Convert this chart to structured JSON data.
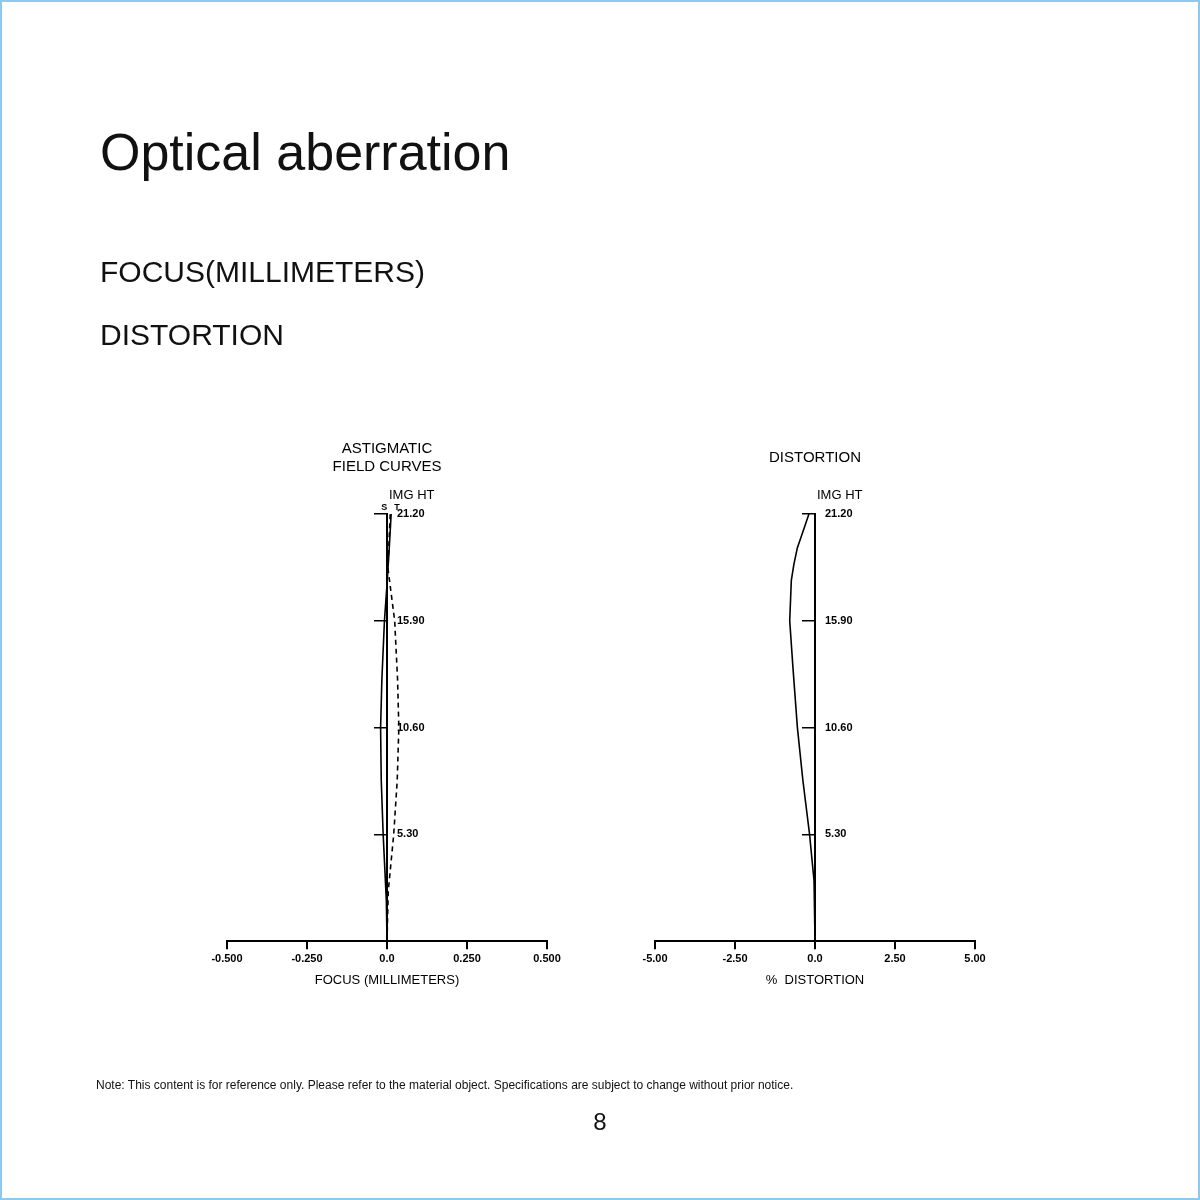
{
  "chart_data": [
    {
      "type": "line",
      "title": [
        "ASTIGMATIC",
        "FIELD CURVES"
      ],
      "xlabel": "FOCUS (MILLIMETERS)",
      "ylabel": "IMG HT",
      "annotations": [
        "Optical aberration",
        "FOCUS(MILLIMETERS)",
        "DISTORTION"
      ],
      "xlim": [
        -0.5,
        0.5
      ],
      "xticks": [
        {
          "value": -0.5,
          "label": "-0.500"
        },
        {
          "value": -0.25,
          "label": "-0.250"
        },
        {
          "value": 0,
          "label": "0.0"
        },
        {
          "value": 0.25,
          "label": "0.250"
        },
        {
          "value": 0.5,
          "label": "0.500"
        }
      ],
      "ylim": [
        0,
        21.2
      ],
      "yticks": [
        {
          "value": 5.3,
          "label": "5.30"
        },
        {
          "value": 10.6,
          "label": "10.60"
        },
        {
          "value": 15.9,
          "label": "15.90"
        },
        {
          "value": 21.2,
          "label": "21.20"
        }
      ],
      "grid": false,
      "legend": false,
      "marker": "none",
      "series": [
        {
          "name": "S",
          "color": "#000000",
          "line_style": "solid",
          "x": [
            0,
            -0.002,
            -0.012,
            -0.018,
            -0.02,
            -0.016,
            -0.008,
            0,
            0.007,
            0.013
          ],
          "values": [
            0,
            2,
            5.3,
            8,
            10.6,
            13,
            15.9,
            17.7,
            19.5,
            21.2
          ]
        },
        {
          "name": "T",
          "color": "#000000",
          "line_style": "dashed",
          "x": [
            0,
            0.004,
            0.021,
            0.032,
            0.037,
            0.033,
            0.024,
            0.003,
            0.01
          ],
          "values": [
            0,
            2.5,
            5.3,
            8,
            10.6,
            13,
            15.9,
            18.5,
            21.2
          ]
        }
      ]
    },
    {
      "type": "line",
      "title": "DISTORTION",
      "xlabel": "%  DISTORTION",
      "ylabel": "IMG HT",
      "annotations": [
        "Note: This content is for reference only. Please refer to the material object. Specifications are subject to change without prior notice.",
        "8"
      ],
      "xlim": [
        -5,
        5
      ],
      "xticks": [
        {
          "value": -5,
          "label": "-5.00"
        },
        {
          "value": -2.5,
          "label": "-2.50"
        },
        {
          "value": 0,
          "label": "0.0"
        },
        {
          "value": 2.5,
          "label": "2.50"
        },
        {
          "value": 5,
          "label": "5.00"
        }
      ],
      "ylim": [
        0,
        21.2
      ],
      "yticks": [
        {
          "value": 5.3,
          "label": "5.30"
        },
        {
          "value": 10.6,
          "label": "10.60"
        },
        {
          "value": 15.9,
          "label": "15.90"
        },
        {
          "value": 21.2,
          "label": "21.20"
        }
      ],
      "grid": false,
      "legend": false,
      "marker": "none",
      "series": [
        {
          "color": "#000000",
          "line_style": "solid",
          "x": [
            0,
            -0.03,
            -0.17,
            -0.38,
            -0.55,
            -0.69,
            -0.79,
            -0.74,
            -0.66,
            -0.55,
            -0.37,
            -0.19
          ],
          "values": [
            0,
            3,
            5.3,
            8,
            10.6,
            13.6,
            15.9,
            17.9,
            18.7,
            19.53,
            20.36,
            21.2
          ]
        }
      ]
    }
  ]
}
